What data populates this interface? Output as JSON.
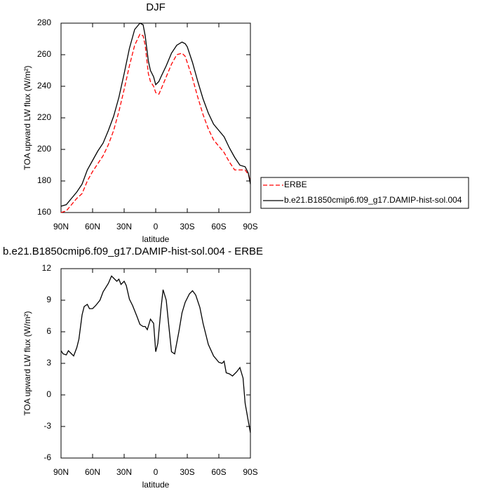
{
  "chart_data": [
    {
      "type": "line",
      "title": "DJF",
      "xlabel": "latitude",
      "ylabel": "TOA upward LW flux (W/m²)",
      "x": [
        90,
        85,
        80,
        75,
        70,
        65,
        60,
        55,
        50,
        45,
        40,
        35,
        30,
        25,
        20,
        15,
        12,
        10,
        7,
        5,
        2,
        0,
        -3,
        -5,
        -10,
        -15,
        -20,
        -25,
        -28,
        -30,
        -35,
        -40,
        -45,
        -50,
        -55,
        -60,
        -65,
        -70,
        -75,
        -80,
        -85,
        -88,
        -90
      ],
      "series": [
        {
          "name": "ERBE",
          "color": "#ff0000",
          "line_style": "dashed",
          "values": [
            160,
            161,
            165,
            169,
            172,
            180,
            186,
            191,
            196,
            203,
            212,
            224,
            238,
            253,
            266,
            273,
            272,
            266,
            248,
            243,
            240,
            236,
            235,
            238,
            246,
            254,
            260,
            261,
            259,
            255,
            245,
            233,
            222,
            213,
            206,
            202,
            198,
            192,
            187,
            187,
            187,
            184,
            180
          ]
        },
        {
          "name": "b.e21.B1850cmip6.f09_g17.DAMIP-hist-sol.004",
          "color": "#000000",
          "line_style": "solid",
          "values": [
            164,
            165,
            169,
            173,
            178,
            187,
            193,
            199,
            204,
            212,
            221,
            233,
            248,
            264,
            276,
            280,
            279,
            272,
            256,
            250,
            246,
            241,
            243,
            246,
            253,
            261,
            266,
            268,
            267,
            265,
            255,
            243,
            232,
            223,
            216,
            212,
            208,
            201,
            195,
            190,
            189,
            185,
            178
          ]
        }
      ],
      "xlim": [
        90,
        -90
      ],
      "xticks": [
        {
          "value": 90,
          "label": "90N"
        },
        {
          "value": 60,
          "label": "60N"
        },
        {
          "value": 30,
          "label": "30N"
        },
        0,
        {
          "value": -30,
          "label": "30S"
        },
        {
          "value": -60,
          "label": "60S"
        },
        {
          "value": -90,
          "label": "90S"
        }
      ],
      "ylim": [
        160,
        280
      ],
      "yticks": [
        160,
        180,
        200,
        220,
        240,
        260,
        280
      ],
      "legend": "right"
    },
    {
      "type": "line",
      "title": "b.e21.B1850cmip6.f09_g17.DAMIP-hist-sol.004 - ERBE",
      "xlabel": "latitude",
      "ylabel": "TOA upward LW flux (W/m²)",
      "x": [
        90,
        88,
        85,
        83,
        80,
        78,
        75,
        73,
        70,
        68,
        65,
        63,
        60,
        57,
        53,
        50,
        45,
        42,
        40,
        37,
        35,
        33,
        30,
        28,
        25,
        22,
        18,
        15,
        12,
        10,
        8,
        5,
        2,
        0,
        -2,
        -5,
        -7,
        -10,
        -12,
        -15,
        -18,
        -22,
        -25,
        -28,
        -32,
        -35,
        -38,
        -42,
        -45,
        -50,
        -55,
        -60,
        -63,
        -65,
        -67,
        -70,
        -73,
        -77,
        -80,
        -83,
        -85,
        -88,
        -90
      ],
      "values": [
        4.2,
        3.9,
        3.8,
        4.2,
        3.9,
        3.7,
        4.5,
        5.3,
        7.6,
        8.4,
        8.6,
        8.2,
        8.2,
        8.5,
        9.0,
        9.8,
        10.6,
        11.3,
        11.1,
        10.8,
        11.0,
        10.5,
        10.8,
        10.4,
        9.1,
        8.5,
        7.5,
        6.7,
        6.5,
        6.5,
        6.2,
        7.2,
        6.8,
        4.1,
        4.9,
        8.2,
        10.0,
        9.0,
        7.0,
        4.1,
        3.9,
        6.0,
        7.8,
        8.8,
        9.6,
        9.9,
        9.5,
        8.3,
        6.8,
        4.8,
        3.7,
        3.1,
        3.0,
        3.2,
        2.1,
        2.0,
        1.8,
        2.2,
        2.6,
        1.6,
        -0.8,
        -2.5,
        -3.6
      ],
      "color": "#000000",
      "xlim": [
        90,
        -90
      ],
      "xticks": [
        {
          "value": 90,
          "label": "90N"
        },
        {
          "value": 60,
          "label": "60N"
        },
        {
          "value": 30,
          "label": "30N"
        },
        0,
        {
          "value": -30,
          "label": "30S"
        },
        {
          "value": -60,
          "label": "60S"
        },
        {
          "value": -90,
          "label": "90S"
        }
      ],
      "ylim": [
        -6,
        12
      ],
      "yticks": [
        -6,
        -3,
        0,
        3,
        6,
        9,
        12
      ]
    }
  ]
}
